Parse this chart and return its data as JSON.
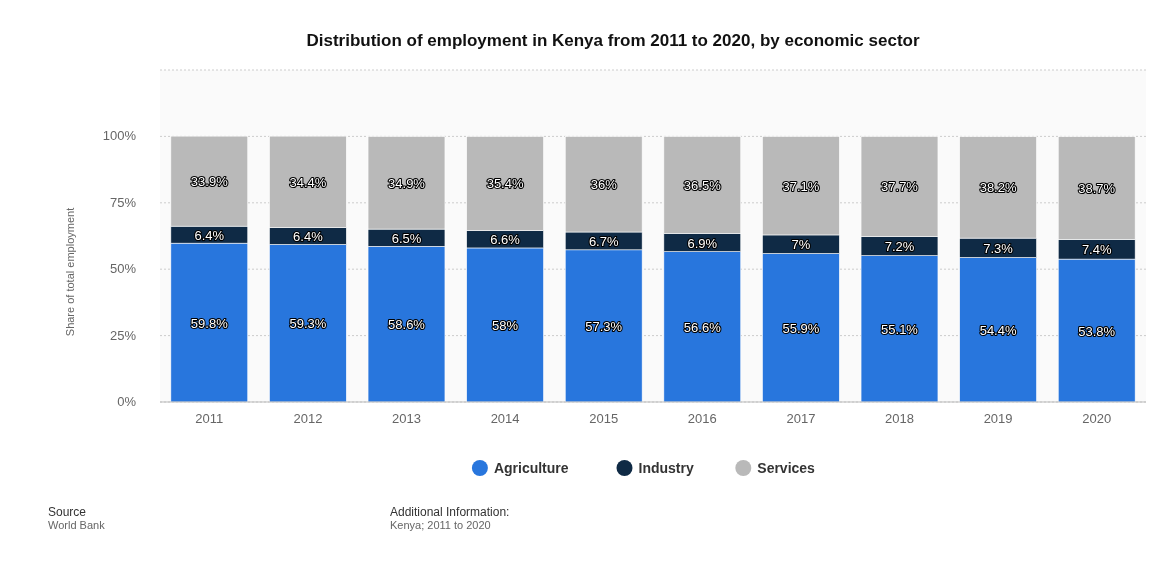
{
  "chart_data": {
    "type": "bar",
    "title": "Distribution of employment in Kenya from 2011 to 2020, by economic sector",
    "ylabel": "Share of total employment",
    "categories": [
      "2011",
      "2012",
      "2013",
      "2014",
      "2015",
      "2016",
      "2017",
      "2018",
      "2019",
      "2020"
    ],
    "stacked": true,
    "series": [
      {
        "name": "Agriculture",
        "color": "#2876dd",
        "values": [
          59.8,
          59.3,
          58.6,
          58,
          57.3,
          56.6,
          55.9,
          55.1,
          54.4,
          53.8
        ],
        "value_labels": [
          "59.8%",
          "59.3%",
          "58.6%",
          "58%",
          "57.3%",
          "56.6%",
          "55.9%",
          "55.1%",
          "54.4%",
          "53.8%"
        ]
      },
      {
        "name": "Industry",
        "color": "#0f2a45",
        "values": [
          6.4,
          6.4,
          6.5,
          6.6,
          6.7,
          6.9,
          7,
          7.2,
          7.3,
          7.4
        ],
        "value_labels": [
          "6.4%",
          "6.4%",
          "6.5%",
          "6.6%",
          "6.7%",
          "6.9%",
          "7%",
          "7.2%",
          "7.3%",
          "7.4%"
        ]
      },
      {
        "name": "Services",
        "color": "#b9b9b9",
        "values": [
          33.9,
          34.4,
          34.9,
          35.4,
          36,
          36.5,
          37.1,
          37.7,
          38.2,
          38.7
        ],
        "value_labels": [
          "33.9%",
          "34.4%",
          "34.9%",
          "35.4%",
          "36%",
          "36.5%",
          "37.1%",
          "37.7%",
          "38.2%",
          "38.7%"
        ]
      }
    ],
    "ylim": [
      0,
      125
    ],
    "yticks": [
      {
        "value": 0,
        "label": "0%"
      },
      {
        "value": 25,
        "label": "25%"
      },
      {
        "value": 50,
        "label": "50%"
      },
      {
        "value": 75,
        "label": "75%"
      },
      {
        "value": 100,
        "label": "100%"
      },
      {
        "value": 125,
        "label": null
      }
    ],
    "grid": "y",
    "legend": "bottom",
    "annotations": [
      "Source",
      "World Bank",
      "Additional Information:",
      "Kenya; 2011 to 2020"
    ]
  }
}
